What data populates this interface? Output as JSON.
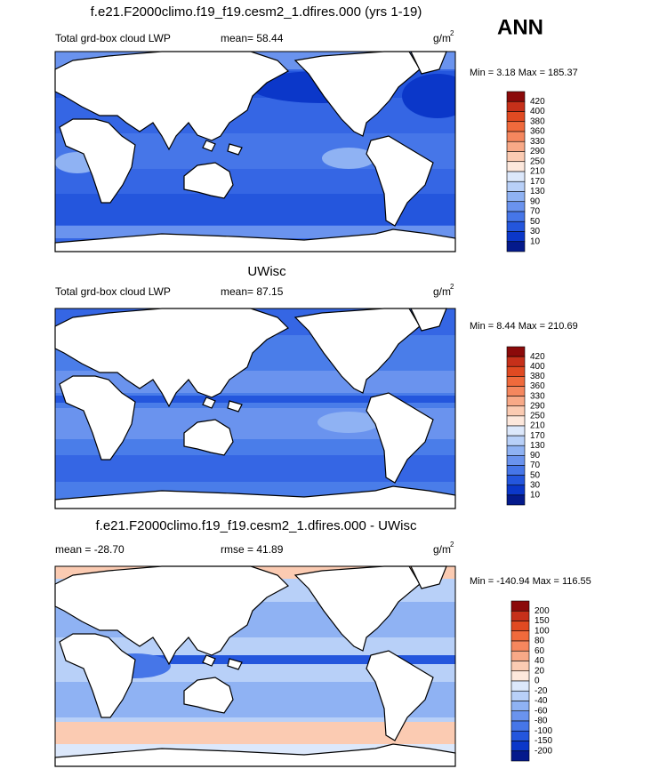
{
  "season": "ANN",
  "colorbar_colors": [
    "#8b0a0a",
    "#c6301a",
    "#e04a22",
    "#f06a3c",
    "#f5875e",
    "#f8a987",
    "#fbcbb2",
    "#fde8dc",
    "#dce8fb",
    "#b8d0f8",
    "#8fb2f3",
    "#6a93ee",
    "#4676e8",
    "#2456dd",
    "#0b37c9",
    "#041a8c"
  ],
  "panels": [
    {
      "title": "f.e21.F2000climo.f19_f19.cesm2_1.dfires.000 (yrs 1-19)",
      "left_label": "Total grd-box cloud LWP",
      "center_label": "mean=  58.44",
      "units": "g/m",
      "units_sup": "2",
      "min_max": "Min =   3.18 Max = 185.37",
      "levels": [
        420,
        400,
        380,
        360,
        330,
        290,
        250,
        210,
        170,
        130,
        90,
        70,
        50,
        30,
        10
      ]
    },
    {
      "title": "UWisc",
      "left_label": "Total grd-box cloud LWP",
      "center_label": "mean=  87.15",
      "units": "g/m",
      "units_sup": "2",
      "min_max": "Min =   8.44 Max = 210.69",
      "levels": [
        420,
        400,
        380,
        360,
        330,
        290,
        250,
        210,
        170,
        130,
        90,
        70,
        50,
        30,
        10
      ]
    },
    {
      "title": "f.e21.F2000climo.f19_f19.cesm2_1.dfires.000 - UWisc",
      "left_label": "mean = -28.70",
      "center_label": "rmse =  41.89",
      "units": "g/m",
      "units_sup": "2",
      "min_max": "Min = -140.94 Max = 116.55",
      "levels": [
        200,
        150,
        100,
        80,
        60,
        40,
        20,
        0,
        -20,
        -40,
        -60,
        -80,
        -100,
        -150,
        -200
      ]
    }
  ]
}
